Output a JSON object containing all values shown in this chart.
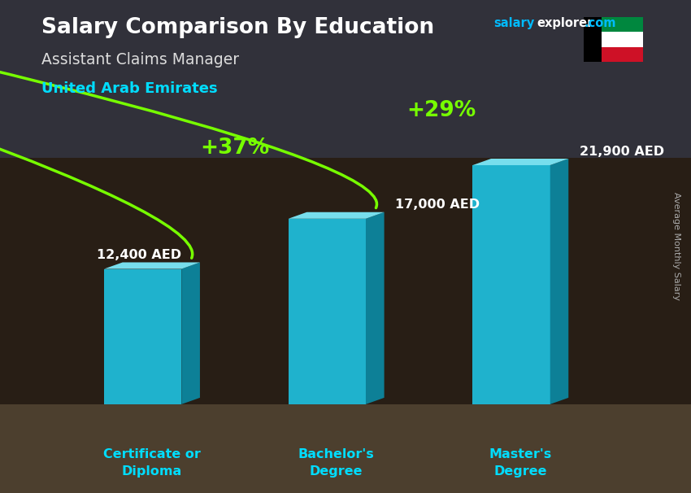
{
  "title": "Salary Comparison By Education",
  "subtitle_job": "Assistant Claims Manager",
  "subtitle_country": "United Arab Emirates",
  "ylabel": "Average Monthly Salary",
  "site_salary": "salary",
  "site_explorer": "explorer",
  "site_com": ".com",
  "categories": [
    "Certificate or\nDiploma",
    "Bachelor's\nDegree",
    "Master's\nDegree"
  ],
  "values": [
    12400,
    17000,
    21900
  ],
  "value_labels": [
    "12,400 AED",
    "17,000 AED",
    "21,900 AED"
  ],
  "pct_labels": [
    "+37%",
    "+29%"
  ],
  "bar_face_color": "#1EC8E8",
  "bar_right_color": "#0A8FAA",
  "bar_top_color": "#7EEEFF",
  "bar_alpha": 0.88,
  "arrow_color": "#77FF00",
  "pct_color": "#77FF00",
  "title_color": "#FFFFFF",
  "subtitle_job_color": "#DDDDDD",
  "subtitle_country_color": "#00DDFF",
  "val_label_color": "#FFFFFF",
  "cat_label_color": "#00DDFF",
  "ylabel_color": "#AAAAAA",
  "site_salary_color": "#00BBFF",
  "site_explorer_color": "#FFFFFF",
  "site_com_color": "#00BBFF",
  "bg_dark": "#0D1117",
  "ylim": [
    0,
    28000
  ],
  "xlim": [
    -0.55,
    2.75
  ],
  "bar_width": 0.42,
  "depth_x": 0.1,
  "depth_y": 600,
  "figsize": [
    8.5,
    6.06
  ],
  "dpi": 100
}
